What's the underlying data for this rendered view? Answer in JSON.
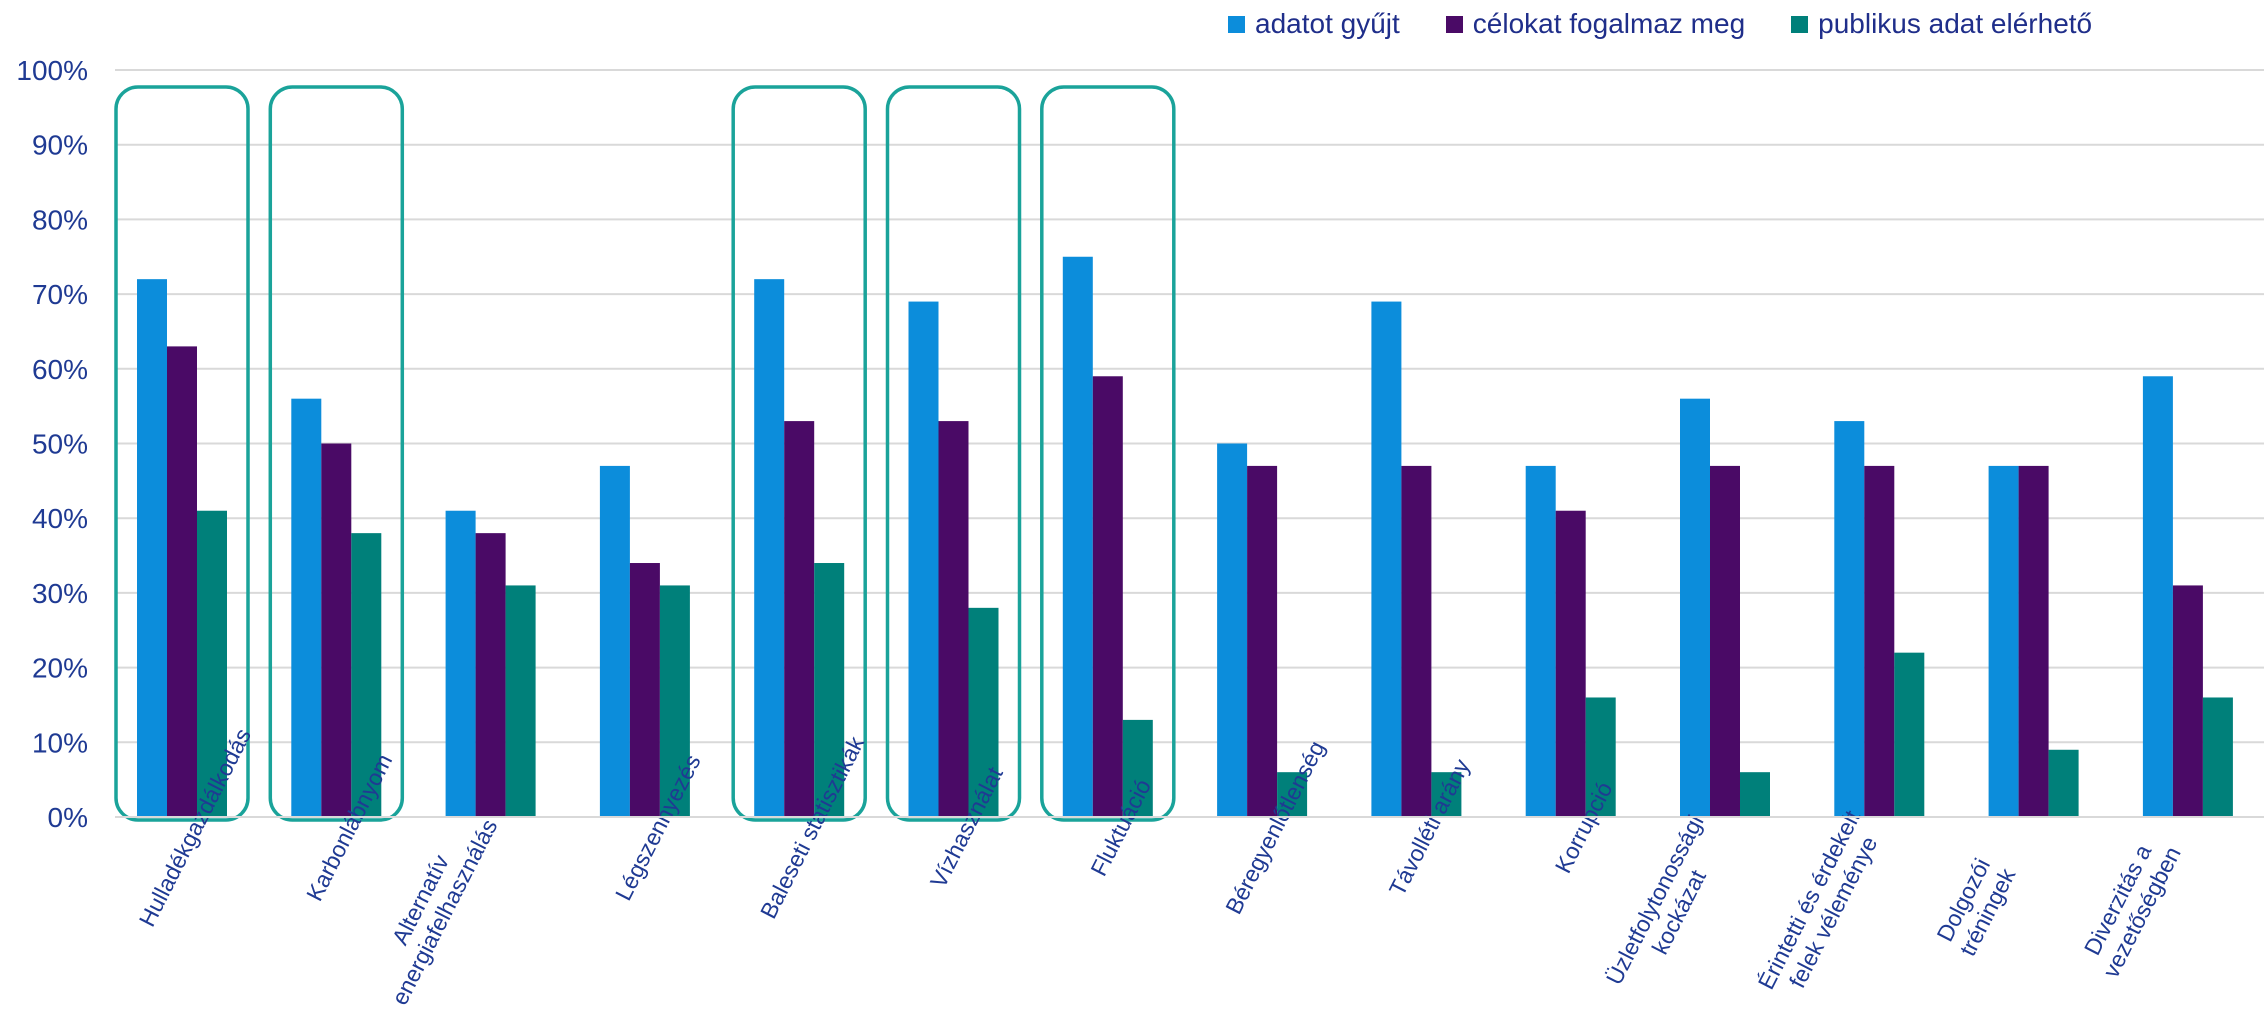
{
  "chart_data": {
    "type": "bar",
    "title": "",
    "xlabel": "",
    "ylabel": "",
    "ylim": [
      0,
      100
    ],
    "y_ticks": [
      "0%",
      "10%",
      "20%",
      "30%",
      "40%",
      "50%",
      "60%",
      "70%",
      "80%",
      "90%",
      "100%"
    ],
    "grid": true,
    "legend_position": "top-right",
    "categories": [
      "Hulladékgazdálkodás",
      "Karbonlábnyom",
      "Alternatív energiafelhasználás",
      "Légszennyezés",
      "Baleseti statisztikák",
      "Vízhasználat",
      "Fluktuáció",
      "Béregyenlőtlenség",
      "Távolléti arány",
      "Korrupció",
      "Üzletfolytonossági kockázat",
      "Érintetti és érdekelt felek véleménye",
      "Dolgozói tréningek",
      "Diverzitás a vezetőségben"
    ],
    "category_lines": [
      [
        "Hulladékgazdálkodás"
      ],
      [
        "Karbonlábnyom"
      ],
      [
        "Alternatív",
        "energiafelhasználás"
      ],
      [
        "Légszennyezés"
      ],
      [
        "Baleseti statisztikák"
      ],
      [
        "Vízhasználat"
      ],
      [
        "Fluktuáció"
      ],
      [
        "Béregyenlőtlenség"
      ],
      [
        "Távolléti arány"
      ],
      [
        "Korrupció"
      ],
      [
        "Üzletfolytonossági",
        "kockázat"
      ],
      [
        "Érintetti és érdekelt",
        "felek véleménye"
      ],
      [
        "Dolgozói",
        "tréningek"
      ],
      [
        "Diverzitás a",
        "vezetőségben"
      ]
    ],
    "highlighted_categories": [
      0,
      1,
      4,
      5,
      6
    ],
    "series": [
      {
        "name": "adatot gyűjt",
        "color": "#0c8ddb",
        "values": [
          72,
          56,
          41,
          47,
          72,
          69,
          75,
          50,
          69,
          47,
          56,
          53,
          47,
          59
        ]
      },
      {
        "name": "célokat fogalmaz meg",
        "color": "#4a0a66",
        "values": [
          63,
          50,
          38,
          34,
          53,
          53,
          59,
          47,
          47,
          41,
          47,
          47,
          47,
          31
        ]
      },
      {
        "name": "publikus adat elérhető",
        "color": "#00807a",
        "values": [
          41,
          38,
          31,
          31,
          34,
          28,
          13,
          6,
          6,
          16,
          6,
          22,
          9,
          16
        ]
      }
    ],
    "colors": {
      "grid": "#d9d9d9",
      "highlight_box": "#1aa39a",
      "text": "#1f3a93"
    }
  }
}
